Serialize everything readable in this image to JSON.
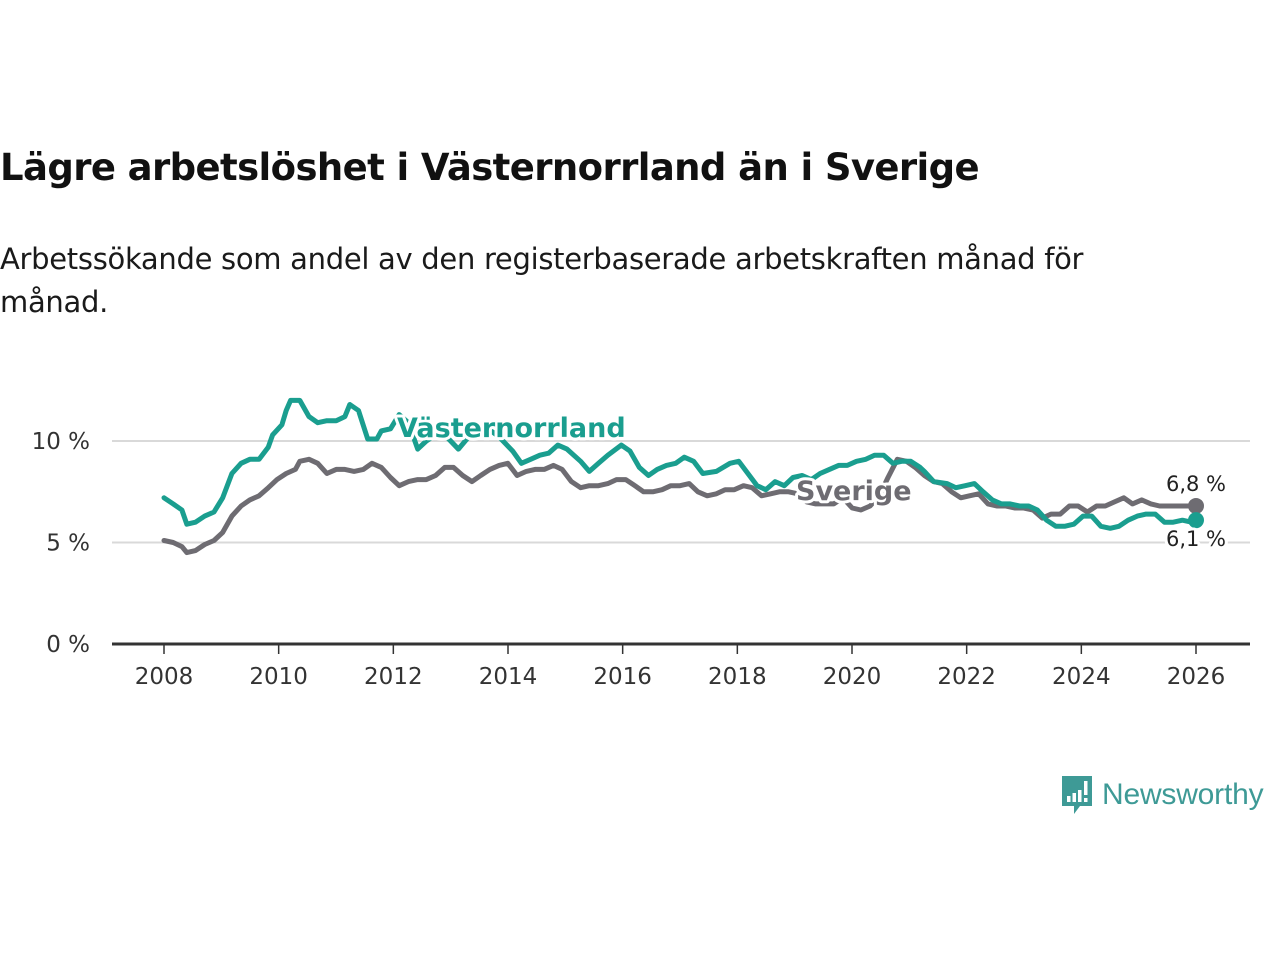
{
  "header": {
    "title": "Lägre arbetslöshet i Västernorrland än i Sverige",
    "subtitle": "Arbetssökande som andel av den registerbaserade arbetskraften månad för månad."
  },
  "branding": {
    "logo_text": "Newsworthy",
    "logo_color": "#3e9a96"
  },
  "chart_data": {
    "type": "line",
    "title": "Lägre arbetslöshet i Västernorrland än i Sverige",
    "subtitle": "Arbetssökande som andel av den registerbaserade arbetskraften månad för månad.",
    "xlabel": "",
    "ylabel": "",
    "xlim": [
      2007.0,
      2027.0
    ],
    "ylim": [
      0,
      12
    ],
    "x_ticks": [
      2008,
      2010,
      2012,
      2014,
      2016,
      2018,
      2020,
      2022,
      2024,
      2026
    ],
    "x_tick_labels": [
      "2008",
      "2010",
      "2012",
      "2014",
      "2016",
      "2018",
      "2020",
      "2022",
      "2024",
      "2026"
    ],
    "y_ticks": [
      0,
      5,
      10
    ],
    "y_tick_labels": [
      "0 %",
      "5 %",
      "10 %"
    ],
    "grid": "horizontal",
    "legend": "inline labels",
    "series": [
      {
        "name": "Västernorrland",
        "color": "#1a9e8f",
        "label_position": "above line near 2012-2014",
        "end_label": "6,1 %",
        "end_value": 6.1,
        "points": [
          [
            2008.0,
            7.2
          ],
          [
            2008.17,
            6.9
          ],
          [
            2008.33,
            6.6
          ],
          [
            2008.42,
            5.9
          ],
          [
            2008.58,
            6.0
          ],
          [
            2008.75,
            6.3
          ],
          [
            2008.92,
            6.5
          ],
          [
            2009.08,
            7.2
          ],
          [
            2009.25,
            8.4
          ],
          [
            2009.42,
            8.9
          ],
          [
            2009.58,
            9.1
          ],
          [
            2009.75,
            9.1
          ],
          [
            2009.92,
            9.7
          ],
          [
            2010.0,
            10.3
          ],
          [
            2010.17,
            10.8
          ],
          [
            2010.25,
            11.5
          ],
          [
            2010.33,
            12.0
          ],
          [
            2010.5,
            12.0
          ],
          [
            2010.67,
            11.2
          ],
          [
            2010.83,
            10.9
          ],
          [
            2011.0,
            11.0
          ],
          [
            2011.17,
            11.0
          ],
          [
            2011.33,
            11.2
          ],
          [
            2011.42,
            11.8
          ],
          [
            2011.58,
            11.5
          ],
          [
            2011.75,
            10.1
          ],
          [
            2011.92,
            10.1
          ],
          [
            2012.0,
            10.5
          ],
          [
            2012.17,
            10.6
          ],
          [
            2012.33,
            11.3
          ],
          [
            2012.5,
            10.9
          ],
          [
            2012.67,
            9.6
          ],
          [
            2012.83,
            10.0
          ],
          [
            2013.0,
            10.3
          ],
          [
            2013.17,
            10.3
          ],
          [
            2013.42,
            9.6
          ],
          [
            2013.67,
            10.4
          ],
          [
            2013.92,
            10.7
          ],
          [
            2014.17,
            10.2
          ],
          [
            2014.42,
            9.5
          ],
          [
            2014.58,
            8.9
          ],
          [
            2014.75,
            9.1
          ],
          [
            2014.92,
            9.3
          ],
          [
            2015.08,
            9.4
          ],
          [
            2015.25,
            9.8
          ],
          [
            2015.42,
            9.6
          ],
          [
            2015.67,
            9.0
          ],
          [
            2015.83,
            8.5
          ],
          [
            2016.0,
            8.9
          ],
          [
            2016.17,
            9.3
          ],
          [
            2016.42,
            9.8
          ],
          [
            2016.58,
            9.5
          ],
          [
            2016.75,
            8.7
          ],
          [
            2016.92,
            8.3
          ],
          [
            2017.08,
            8.6
          ],
          [
            2017.25,
            8.8
          ],
          [
            2017.42,
            8.9
          ],
          [
            2017.58,
            9.2
          ],
          [
            2017.75,
            9.0
          ],
          [
            2017.92,
            8.4
          ],
          [
            2018.17,
            8.5
          ],
          [
            2018.42,
            8.9
          ],
          [
            2018.58,
            9.0
          ],
          [
            2018.75,
            8.4
          ],
          [
            2018.92,
            7.8
          ],
          [
            2019.08,
            7.6
          ],
          [
            2019.25,
            8.0
          ],
          [
            2019.42,
            7.8
          ],
          [
            2019.58,
            8.2
          ],
          [
            2019.75,
            8.3
          ],
          [
            2019.92,
            8.1
          ],
          [
            2020.08,
            8.4
          ],
          [
            2020.25,
            8.6
          ],
          [
            2020.42,
            8.8
          ],
          [
            2020.58,
            8.8
          ],
          [
            2020.75,
            9.0
          ],
          [
            2020.92,
            9.1
          ],
          [
            2021.08,
            9.3
          ],
          [
            2021.25,
            9.3
          ],
          [
            2021.42,
            8.9
          ],
          [
            2021.58,
            9.0
          ],
          [
            2021.75,
            9.0
          ],
          [
            2021.92,
            8.7
          ],
          [
            2022.0,
            8.5
          ],
          [
            2022.17,
            8.0
          ],
          [
            2022.42,
            7.9
          ],
          [
            2022.58,
            7.7
          ],
          [
            2022.75,
            7.8
          ],
          [
            2022.92,
            7.9
          ],
          [
            2023.08,
            7.5
          ],
          [
            2023.25,
            7.1
          ],
          [
            2023.42,
            6.9
          ],
          [
            2023.58,
            6.9
          ],
          [
            2023.75,
            6.8
          ],
          [
            2023.92,
            6.8
          ],
          [
            2024.08,
            6.6
          ],
          [
            2024.25,
            6.1
          ],
          [
            2024.42,
            5.8
          ],
          [
            2024.58,
            5.8
          ],
          [
            2024.75,
            5.9
          ],
          [
            2024.92,
            6.3
          ],
          [
            2025.08,
            6.3
          ],
          [
            2025.25,
            5.8
          ],
          [
            2025.42,
            5.7
          ],
          [
            2025.58,
            5.8
          ],
          [
            2025.75,
            6.1
          ],
          [
            2025.92,
            6.3
          ],
          [
            2026.08,
            6.4
          ],
          [
            2026.25,
            6.4
          ],
          [
            2026.42,
            6.0
          ],
          [
            2026.58,
            6.0
          ],
          [
            2026.75,
            6.1
          ],
          [
            2026.92,
            6.0
          ],
          [
            2027.0,
            6.1
          ]
        ]
      },
      {
        "name": "Sverige",
        "color": "#6e6c72",
        "label_position": "below line near 2019-2020",
        "end_label": "6,8 %",
        "end_value": 6.8,
        "points": [
          [
            2008.0,
            5.1
          ],
          [
            2008.17,
            5.0
          ],
          [
            2008.33,
            4.8
          ],
          [
            2008.42,
            4.5
          ],
          [
            2008.58,
            4.6
          ],
          [
            2008.75,
            4.9
          ],
          [
            2008.92,
            5.1
          ],
          [
            2009.08,
            5.5
          ],
          [
            2009.25,
            6.3
          ],
          [
            2009.42,
            6.8
          ],
          [
            2009.58,
            7.1
          ],
          [
            2009.75,
            7.3
          ],
          [
            2009.92,
            7.7
          ],
          [
            2010.08,
            8.1
          ],
          [
            2010.25,
            8.4
          ],
          [
            2010.42,
            8.6
          ],
          [
            2010.5,
            9.0
          ],
          [
            2010.67,
            9.1
          ],
          [
            2010.83,
            8.9
          ],
          [
            2011.0,
            8.4
          ],
          [
            2011.17,
            8.6
          ],
          [
            2011.33,
            8.6
          ],
          [
            2011.5,
            8.5
          ],
          [
            2011.67,
            8.6
          ],
          [
            2011.83,
            8.9
          ],
          [
            2012.0,
            8.7
          ],
          [
            2012.17,
            8.2
          ],
          [
            2012.33,
            7.8
          ],
          [
            2012.5,
            8.0
          ],
          [
            2012.67,
            8.1
          ],
          [
            2012.83,
            8.1
          ],
          [
            2013.0,
            8.3
          ],
          [
            2013.17,
            8.7
          ],
          [
            2013.33,
            8.7
          ],
          [
            2013.5,
            8.3
          ],
          [
            2013.67,
            8.0
          ],
          [
            2013.83,
            8.3
          ],
          [
            2014.0,
            8.6
          ],
          [
            2014.17,
            8.8
          ],
          [
            2014.33,
            8.9
          ],
          [
            2014.5,
            8.3
          ],
          [
            2014.67,
            8.5
          ],
          [
            2014.83,
            8.6
          ],
          [
            2015.0,
            8.6
          ],
          [
            2015.17,
            8.8
          ],
          [
            2015.33,
            8.6
          ],
          [
            2015.5,
            8.0
          ],
          [
            2015.67,
            7.7
          ],
          [
            2015.83,
            7.8
          ],
          [
            2016.0,
            7.8
          ],
          [
            2016.17,
            7.9
          ],
          [
            2016.33,
            8.1
          ],
          [
            2016.5,
            8.1
          ],
          [
            2016.67,
            7.8
          ],
          [
            2016.83,
            7.5
          ],
          [
            2017.0,
            7.5
          ],
          [
            2017.17,
            7.6
          ],
          [
            2017.33,
            7.8
          ],
          [
            2017.5,
            7.8
          ],
          [
            2017.67,
            7.9
          ],
          [
            2017.83,
            7.5
          ],
          [
            2018.0,
            7.3
          ],
          [
            2018.17,
            7.4
          ],
          [
            2018.33,
            7.6
          ],
          [
            2018.5,
            7.6
          ],
          [
            2018.67,
            7.8
          ],
          [
            2018.83,
            7.7
          ],
          [
            2019.0,
            7.3
          ],
          [
            2019.17,
            7.4
          ],
          [
            2019.33,
            7.5
          ],
          [
            2019.5,
            7.5
          ],
          [
            2019.67,
            7.4
          ],
          [
            2019.83,
            7.0
          ],
          [
            2020.0,
            6.9
          ],
          [
            2020.17,
            6.9
          ],
          [
            2020.33,
            6.9
          ],
          [
            2020.5,
            7.2
          ],
          [
            2020.67,
            6.7
          ],
          [
            2020.83,
            6.6
          ],
          [
            2021.0,
            6.8
          ],
          [
            2021.17,
            7.3
          ],
          [
            2021.33,
            8.2
          ],
          [
            2021.5,
            9.1
          ],
          [
            2021.67,
            9.0
          ],
          [
            2021.83,
            8.7
          ],
          [
            2022.0,
            8.3
          ],
          [
            2022.17,
            8.0
          ],
          [
            2022.33,
            7.9
          ],
          [
            2022.5,
            7.5
          ],
          [
            2022.67,
            7.2
          ],
          [
            2022.83,
            7.3
          ],
          [
            2023.0,
            7.4
          ],
          [
            2023.17,
            6.9
          ],
          [
            2023.33,
            6.8
          ],
          [
            2023.5,
            6.8
          ],
          [
            2023.67,
            6.7
          ],
          [
            2023.83,
            6.7
          ],
          [
            2024.0,
            6.6
          ],
          [
            2024.17,
            6.2
          ],
          [
            2024.33,
            6.4
          ],
          [
            2024.5,
            6.4
          ],
          [
            2024.67,
            6.8
          ],
          [
            2024.83,
            6.8
          ],
          [
            2025.0,
            6.5
          ],
          [
            2025.17,
            6.8
          ],
          [
            2025.33,
            6.8
          ],
          [
            2025.5,
            7.0
          ],
          [
            2025.67,
            7.2
          ],
          [
            2025.83,
            6.9
          ],
          [
            2026.0,
            7.1
          ],
          [
            2026.17,
            6.9
          ],
          [
            2026.33,
            6.8
          ],
          [
            2026.5,
            6.8
          ],
          [
            2027.0,
            6.8
          ]
        ]
      }
    ]
  }
}
